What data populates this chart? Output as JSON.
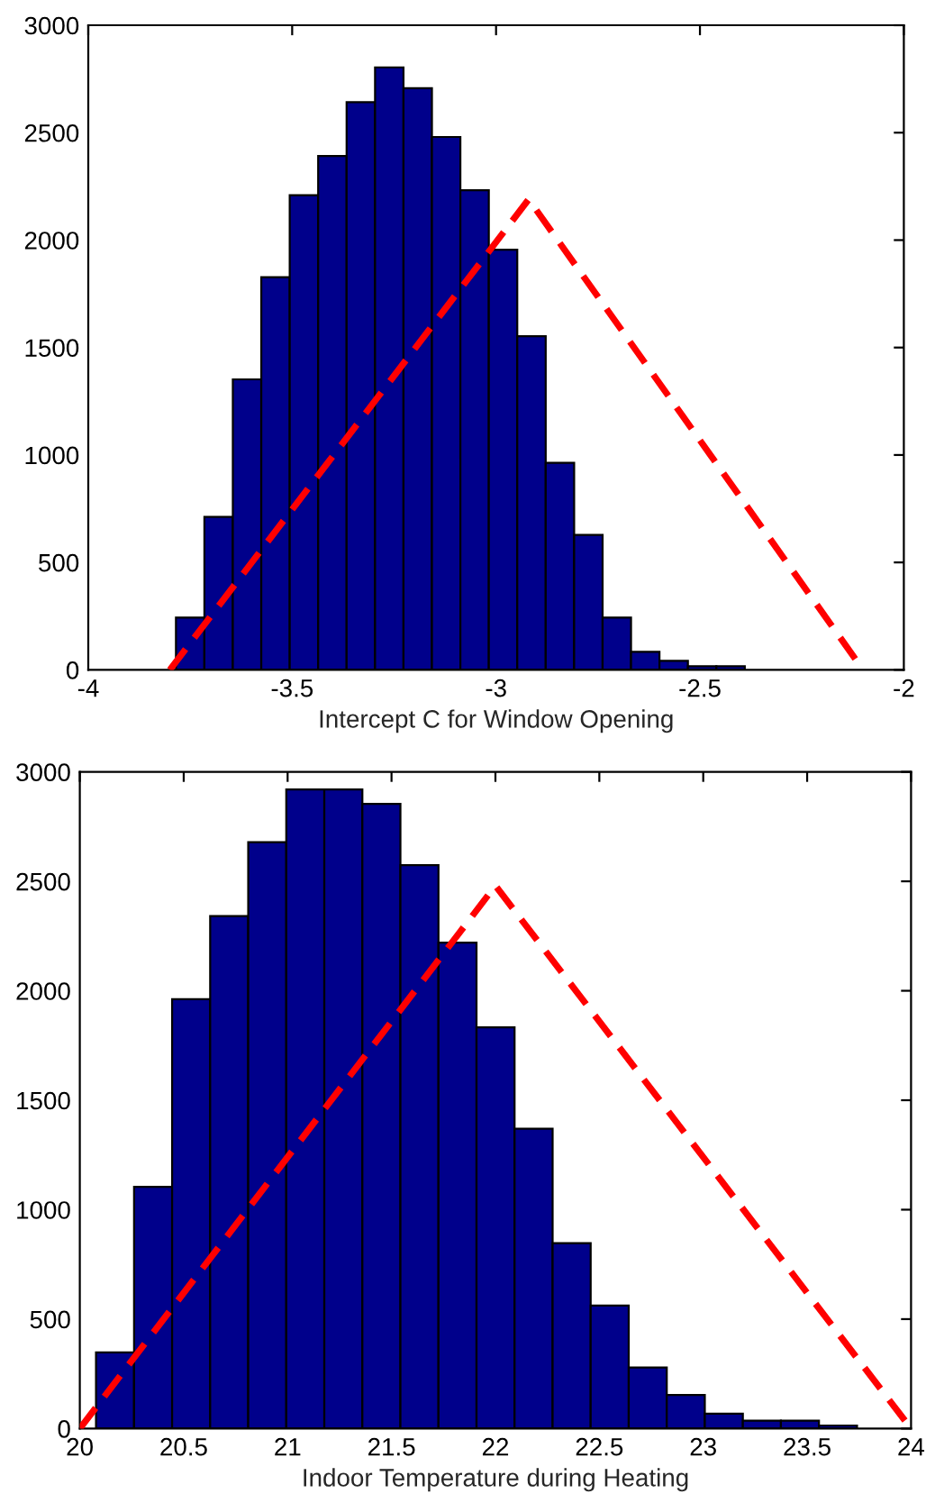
{
  "chart_data": [
    {
      "type": "histogram",
      "xlabel": "Intercept C for Window Opening",
      "color": "#00008b",
      "bins": [
        -3.785,
        -3.71525,
        -3.6455,
        -3.57575,
        -3.506,
        -3.43625,
        -3.3665,
        -3.29675,
        -3.227,
        -3.15725,
        -3.0875,
        -3.01775,
        -2.948,
        -2.87825,
        -2.8085,
        -2.73875,
        -2.669,
        -2.59925,
        -2.5295,
        -2.45975,
        -2.39
      ],
      "values": [
        243,
        712,
        1352,
        1827,
        2209,
        2391,
        2642,
        2804,
        2707,
        2480,
        2232,
        1955,
        1553,
        964,
        628,
        243,
        84,
        42,
        17,
        17
      ],
      "series": [
        {
          "type": "line",
          "color": "#ff0000",
          "line_style": "dashed",
          "x": [
            -3.8,
            -2.92,
            -2.1
          ],
          "values": [
            0,
            2190,
            0
          ]
        }
      ],
      "xlim": [
        -4,
        -2
      ],
      "xticks": [
        -4,
        -3.5,
        -3,
        -2.5,
        -2
      ],
      "ylim": [
        0,
        3000
      ],
      "yticks": [
        0,
        500,
        1000,
        1500,
        2000,
        2500,
        3000
      ]
    },
    {
      "type": "histogram",
      "xlabel": "Indoor Temperature during Heating",
      "color": "#00008b",
      "bins": [
        20.078,
        20.2611,
        20.4442,
        20.6273,
        20.8104,
        20.9935,
        21.1766,
        21.3597,
        21.5428,
        21.7259,
        21.909,
        22.0921,
        22.2752,
        22.4583,
        22.6414,
        22.8245,
        23.0076,
        23.1907,
        23.3738,
        23.5569,
        23.74
      ],
      "values": [
        348,
        1104,
        1962,
        2341,
        2679,
        2920,
        2920,
        2854,
        2574,
        2220,
        1833,
        1370,
        847,
        562,
        279,
        153,
        68,
        36,
        36,
        14
      ],
      "series": [
        {
          "type": "line",
          "color": "#ff0000",
          "line_style": "dashed",
          "x": [
            20,
            22,
            24
          ],
          "values": [
            0,
            2480,
            0
          ]
        }
      ],
      "xlim": [
        20,
        24
      ],
      "xticks": [
        20,
        20.5,
        21,
        21.5,
        22,
        22.5,
        23,
        23.5,
        24
      ],
      "ylim": [
        0,
        3000
      ],
      "yticks": [
        0,
        500,
        1000,
        1500,
        2000,
        2500,
        3000
      ]
    }
  ]
}
